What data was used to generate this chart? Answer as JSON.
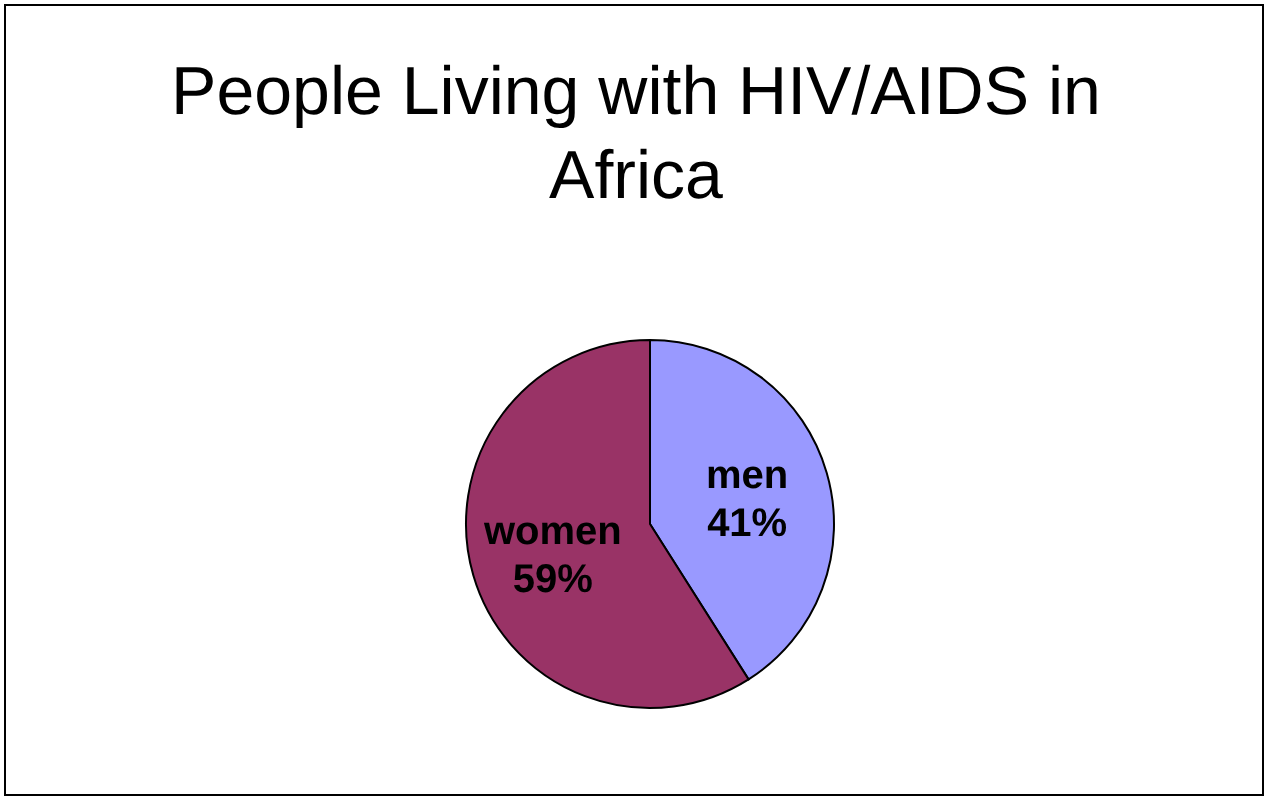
{
  "chart_data": {
    "type": "pie",
    "title": "People Living with HIV/AIDS in Africa",
    "categories": [
      "men",
      "women"
    ],
    "values": [
      41,
      59
    ],
    "colors": [
      "#9999ff",
      "#993366"
    ],
    "value_labels": [
      "41%",
      "59%"
    ]
  }
}
